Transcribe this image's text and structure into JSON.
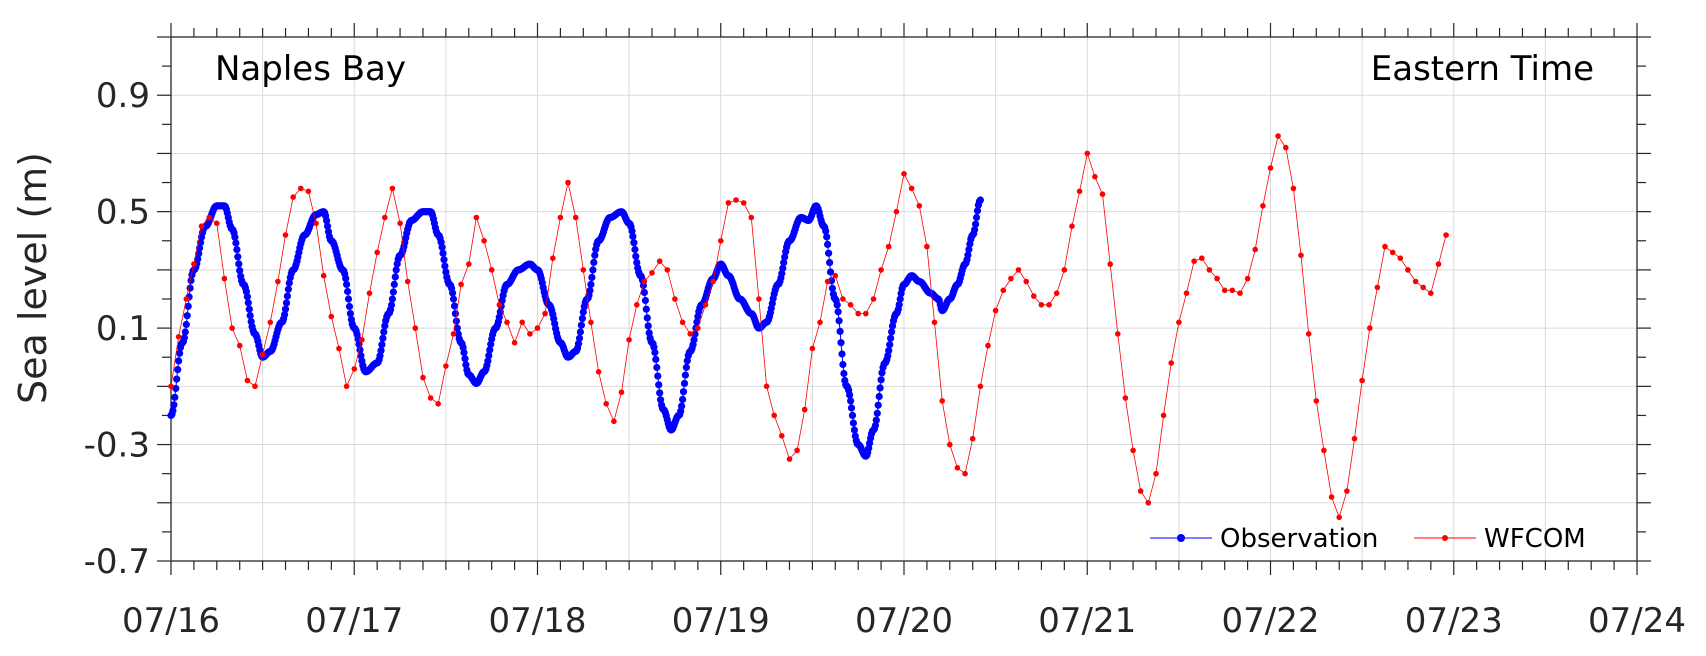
{
  "chart_data": {
    "type": "line",
    "title": "",
    "annotations": {
      "location": "Naples Bay",
      "timezone": "Eastern Time"
    },
    "xlabel": "",
    "ylabel": "Sea level (m)",
    "xlim": [
      "07/16",
      "07/24"
    ],
    "ylim": [
      -0.7,
      1.1
    ],
    "x_tick_labels": [
      "07/16",
      "07/17",
      "07/18",
      "07/19",
      "07/20",
      "07/21",
      "07/22",
      "07/23",
      "07/24"
    ],
    "y_ticks": [
      -0.7,
      -0.3,
      0.1,
      0.5,
      0.9
    ],
    "y_tick_labels": [
      "-0.7",
      "-0.3",
      "0.1",
      "0.5",
      "0.9"
    ],
    "grid": true,
    "legend_position": "bottom-right",
    "series": [
      {
        "name": "Observation",
        "color": "#0000ff",
        "marker": "circle",
        "points": [
          [
            "07/16 00:00",
            -0.2
          ],
          [
            "07/16 01:30",
            0.05
          ],
          [
            "07/16 03:00",
            0.3
          ],
          [
            "07/16 04:30",
            0.45
          ],
          [
            "07/16 06:00",
            0.52
          ],
          [
            "07/16 07:00",
            0.52
          ],
          [
            "07/16 08:00",
            0.44
          ],
          [
            "07/16 09:30",
            0.25
          ],
          [
            "07/16 11:00",
            0.08
          ],
          [
            "07/16 12:00",
            0.0
          ],
          [
            "07/16 13:00",
            0.02
          ],
          [
            "07/16 14:30",
            0.12
          ],
          [
            "07/16 16:00",
            0.3
          ],
          [
            "07/16 17:30",
            0.42
          ],
          [
            "07/16 19:00",
            0.49
          ],
          [
            "07/16 20:00",
            0.5
          ],
          [
            "07/16 21:00",
            0.4
          ],
          [
            "07/16 22:30",
            0.3
          ],
          [
            "07/17 00:00",
            0.1
          ],
          [
            "07/17 01:30",
            -0.05
          ],
          [
            "07/17 03:00",
            -0.02
          ],
          [
            "07/17 04:30",
            0.15
          ],
          [
            "07/17 06:00",
            0.35
          ],
          [
            "07/17 07:30",
            0.47
          ],
          [
            "07/17 09:00",
            0.5
          ],
          [
            "07/17 10:00",
            0.5
          ],
          [
            "07/17 11:00",
            0.42
          ],
          [
            "07/17 12:30",
            0.25
          ],
          [
            "07/17 14:00",
            0.05
          ],
          [
            "07/17 15:00",
            -0.06
          ],
          [
            "07/17 16:00",
            -0.09
          ],
          [
            "07/17 17:00",
            -0.05
          ],
          [
            "07/17 18:30",
            0.1
          ],
          [
            "07/17 20:00",
            0.25
          ],
          [
            "07/17 21:30",
            0.3
          ],
          [
            "07/17 23:00",
            0.32
          ],
          [
            "07/18 00:00",
            0.3
          ],
          [
            "07/18 01:30",
            0.18
          ],
          [
            "07/18 03:00",
            0.05
          ],
          [
            "07/18 04:00",
            0.0
          ],
          [
            "07/18 05:00",
            0.02
          ],
          [
            "07/18 06:30",
            0.2
          ],
          [
            "07/18 08:00",
            0.4
          ],
          [
            "07/18 09:30",
            0.48
          ],
          [
            "07/18 11:00",
            0.5
          ],
          [
            "07/18 12:00",
            0.46
          ],
          [
            "07/18 13:30",
            0.28
          ],
          [
            "07/18 15:00",
            0.05
          ],
          [
            "07/18 16:30",
            -0.18
          ],
          [
            "07/18 17:30",
            -0.25
          ],
          [
            "07/18 18:30",
            -0.2
          ],
          [
            "07/18 20:00",
            0.02
          ],
          [
            "07/18 21:30",
            0.18
          ],
          [
            "07/18 23:00",
            0.27
          ],
          [
            "07/19 00:00",
            0.32
          ],
          [
            "07/19 01:00",
            0.28
          ],
          [
            "07/19 02:30",
            0.2
          ],
          [
            "07/19 04:00",
            0.15
          ],
          [
            "07/19 05:00",
            0.1
          ],
          [
            "07/19 06:00",
            0.12
          ],
          [
            "07/19 07:30",
            0.25
          ],
          [
            "07/19 09:00",
            0.4
          ],
          [
            "07/19 10:30",
            0.48
          ],
          [
            "07/19 11:30",
            0.47
          ],
          [
            "07/19 12:30",
            0.52
          ],
          [
            "07/19 13:30",
            0.45
          ],
          [
            "07/19 15:00",
            0.2
          ],
          [
            "07/19 16:30",
            -0.1
          ],
          [
            "07/19 18:00",
            -0.3
          ],
          [
            "07/19 19:00",
            -0.34
          ],
          [
            "07/19 20:00",
            -0.25
          ],
          [
            "07/19 21:30",
            -0.02
          ],
          [
            "07/19 23:00",
            0.15
          ],
          [
            "07/20 00:00",
            0.25
          ],
          [
            "07/20 01:00",
            0.28
          ],
          [
            "07/20 02:00",
            0.26
          ],
          [
            "07/20 03:30",
            0.22
          ],
          [
            "07/20 04:30",
            0.2
          ],
          [
            "07/20 05:00",
            0.16
          ],
          [
            "07/20 06:00",
            0.2
          ],
          [
            "07/20 07:00",
            0.25
          ],
          [
            "07/20 08:00",
            0.32
          ],
          [
            "07/20 09:00",
            0.42
          ],
          [
            "07/20 10:00",
            0.54
          ]
        ]
      },
      {
        "name": "WFCOM",
        "color": "#ff0000",
        "marker": "circle",
        "points": [
          [
            "07/16 00:00",
            -0.1
          ],
          [
            "07/16 01:00",
            0.07
          ],
          [
            "07/16 02:00",
            0.2
          ],
          [
            "07/16 03:00",
            0.32
          ],
          [
            "07/16 04:00",
            0.45
          ],
          [
            "07/16 05:00",
            0.48
          ],
          [
            "07/16 06:00",
            0.46
          ],
          [
            "07/16 07:00",
            0.27
          ],
          [
            "07/16 08:00",
            0.1
          ],
          [
            "07/16 09:00",
            0.04
          ],
          [
            "07/16 10:00",
            -0.08
          ],
          [
            "07/16 11:00",
            -0.1
          ],
          [
            "07/16 12:00",
            0.01
          ],
          [
            "07/16 13:00",
            0.12
          ],
          [
            "07/16 14:00",
            0.26
          ],
          [
            "07/16 15:00",
            0.42
          ],
          [
            "07/16 16:00",
            0.55
          ],
          [
            "07/16 17:00",
            0.58
          ],
          [
            "07/16 18:00",
            0.57
          ],
          [
            "07/16 19:00",
            0.46
          ],
          [
            "07/16 20:00",
            0.28
          ],
          [
            "07/16 21:00",
            0.14
          ],
          [
            "07/16 22:00",
            0.03
          ],
          [
            "07/16 23:00",
            -0.1
          ],
          [
            "07/17 00:00",
            -0.04
          ],
          [
            "07/17 01:00",
            0.06
          ],
          [
            "07/17 02:00",
            0.22
          ],
          [
            "07/17 03:00",
            0.36
          ],
          [
            "07/17 04:00",
            0.48
          ],
          [
            "07/17 05:00",
            0.58
          ],
          [
            "07/17 06:00",
            0.46
          ],
          [
            "07/17 07:00",
            0.26
          ],
          [
            "07/17 08:00",
            0.1
          ],
          [
            "07/17 09:00",
            -0.07
          ],
          [
            "07/17 10:00",
            -0.14
          ],
          [
            "07/17 11:00",
            -0.16
          ],
          [
            "07/17 12:00",
            -0.03
          ],
          [
            "07/17 13:00",
            0.08
          ],
          [
            "07/17 14:00",
            0.25
          ],
          [
            "07/17 15:00",
            0.32
          ],
          [
            "07/17 16:00",
            0.48
          ],
          [
            "07/17 17:00",
            0.4
          ],
          [
            "07/17 18:00",
            0.3
          ],
          [
            "07/17 19:00",
            0.18
          ],
          [
            "07/17 20:00",
            0.12
          ],
          [
            "07/17 21:00",
            0.05
          ],
          [
            "07/17 22:00",
            0.12
          ],
          [
            "07/17 23:00",
            0.08
          ],
          [
            "07/18 00:00",
            0.1
          ],
          [
            "07/18 01:00",
            0.15
          ],
          [
            "07/18 02:00",
            0.34
          ],
          [
            "07/18 03:00",
            0.48
          ],
          [
            "07/18 04:00",
            0.6
          ],
          [
            "07/18 05:00",
            0.48
          ],
          [
            "07/18 06:00",
            0.3
          ],
          [
            "07/18 07:00",
            0.12
          ],
          [
            "07/18 08:00",
            -0.05
          ],
          [
            "07/18 09:00",
            -0.16
          ],
          [
            "07/18 10:00",
            -0.22
          ],
          [
            "07/18 11:00",
            -0.12
          ],
          [
            "07/18 12:00",
            0.06
          ],
          [
            "07/18 13:00",
            0.18
          ],
          [
            "07/18 14:00",
            0.26
          ],
          [
            "07/18 15:00",
            0.29
          ],
          [
            "07/18 16:00",
            0.33
          ],
          [
            "07/18 17:00",
            0.3
          ],
          [
            "07/18 18:00",
            0.2
          ],
          [
            "07/18 19:00",
            0.12
          ],
          [
            "07/18 20:00",
            0.08
          ],
          [
            "07/18 21:00",
            0.1
          ],
          [
            "07/18 22:00",
            0.18
          ],
          [
            "07/18 23:00",
            0.26
          ],
          [
            "07/19 00:00",
            0.4
          ],
          [
            "07/19 01:00",
            0.53
          ],
          [
            "07/19 02:00",
            0.54
          ],
          [
            "07/19 03:00",
            0.53
          ],
          [
            "07/19 04:00",
            0.48
          ],
          [
            "07/19 05:00",
            0.2
          ],
          [
            "07/19 06:00",
            -0.1
          ],
          [
            "07/19 07:00",
            -0.2
          ],
          [
            "07/19 08:00",
            -0.27
          ],
          [
            "07/19 09:00",
            -0.35
          ],
          [
            "07/19 10:00",
            -0.32
          ],
          [
            "07/19 11:00",
            -0.18
          ],
          [
            "07/19 12:00",
            0.03
          ],
          [
            "07/19 13:00",
            0.12
          ],
          [
            "07/19 14:00",
            0.26
          ],
          [
            "07/19 15:00",
            0.28
          ],
          [
            "07/19 16:00",
            0.2
          ],
          [
            "07/19 17:00",
            0.18
          ],
          [
            "07/19 18:00",
            0.15
          ],
          [
            "07/19 19:00",
            0.15
          ],
          [
            "07/19 20:00",
            0.2
          ],
          [
            "07/19 21:00",
            0.3
          ],
          [
            "07/19 22:00",
            0.38
          ],
          [
            "07/19 23:00",
            0.5
          ],
          [
            "07/20 00:00",
            0.63
          ],
          [
            "07/20 01:00",
            0.58
          ],
          [
            "07/20 02:00",
            0.52
          ],
          [
            "07/20 03:00",
            0.38
          ],
          [
            "07/20 04:00",
            0.12
          ],
          [
            "07/20 05:00",
            -0.15
          ],
          [
            "07/20 06:00",
            -0.3
          ],
          [
            "07/20 07:00",
            -0.38
          ],
          [
            "07/20 08:00",
            -0.4
          ],
          [
            "07/20 09:00",
            -0.28
          ],
          [
            "07/20 10:00",
            -0.1
          ],
          [
            "07/20 11:00",
            0.04
          ],
          [
            "07/20 12:00",
            0.16
          ],
          [
            "07/20 13:00",
            0.23
          ],
          [
            "07/20 14:00",
            0.27
          ],
          [
            "07/20 15:00",
            0.3
          ],
          [
            "07/20 16:00",
            0.26
          ],
          [
            "07/20 17:00",
            0.21
          ],
          [
            "07/20 18:00",
            0.18
          ],
          [
            "07/20 19:00",
            0.18
          ],
          [
            "07/20 20:00",
            0.22
          ],
          [
            "07/20 21:00",
            0.3
          ],
          [
            "07/20 22:00",
            0.45
          ],
          [
            "07/20 23:00",
            0.57
          ],
          [
            "07/21 00:00",
            0.7
          ],
          [
            "07/21 01:00",
            0.62
          ],
          [
            "07/21 02:00",
            0.56
          ],
          [
            "07/21 03:00",
            0.32
          ],
          [
            "07/21 04:00",
            0.08
          ],
          [
            "07/21 05:00",
            -0.14
          ],
          [
            "07/21 06:00",
            -0.32
          ],
          [
            "07/21 07:00",
            -0.46
          ],
          [
            "07/21 08:00",
            -0.5
          ],
          [
            "07/21 09:00",
            -0.4
          ],
          [
            "07/21 10:00",
            -0.2
          ],
          [
            "07/21 11:00",
            -0.02
          ],
          [
            "07/21 12:00",
            0.12
          ],
          [
            "07/21 13:00",
            0.22
          ],
          [
            "07/21 14:00",
            0.33
          ],
          [
            "07/21 15:00",
            0.34
          ],
          [
            "07/21 16:00",
            0.3
          ],
          [
            "07/21 17:00",
            0.27
          ],
          [
            "07/21 18:00",
            0.23
          ],
          [
            "07/21 19:00",
            0.23
          ],
          [
            "07/21 20:00",
            0.22
          ],
          [
            "07/21 21:00",
            0.27
          ],
          [
            "07/21 22:00",
            0.37
          ],
          [
            "07/21 23:00",
            0.52
          ],
          [
            "07/22 00:00",
            0.65
          ],
          [
            "07/22 01:00",
            0.76
          ],
          [
            "07/22 02:00",
            0.72
          ],
          [
            "07/22 03:00",
            0.58
          ],
          [
            "07/22 04:00",
            0.35
          ],
          [
            "07/22 05:00",
            0.08
          ],
          [
            "07/22 06:00",
            -0.15
          ],
          [
            "07/22 07:00",
            -0.32
          ],
          [
            "07/22 08:00",
            -0.48
          ],
          [
            "07/22 09:00",
            -0.55
          ],
          [
            "07/22 10:00",
            -0.46
          ],
          [
            "07/22 11:00",
            -0.28
          ],
          [
            "07/22 12:00",
            -0.08
          ],
          [
            "07/22 13:00",
            0.1
          ],
          [
            "07/22 14:00",
            0.24
          ],
          [
            "07/22 15:00",
            0.38
          ],
          [
            "07/22 16:00",
            0.36
          ],
          [
            "07/22 17:00",
            0.34
          ],
          [
            "07/22 18:00",
            0.3
          ],
          [
            "07/22 19:00",
            0.26
          ],
          [
            "07/22 20:00",
            0.24
          ],
          [
            "07/22 21:00",
            0.22
          ],
          [
            "07/22 22:00",
            0.32
          ],
          [
            "07/22 23:00",
            0.42
          ]
        ]
      }
    ]
  }
}
